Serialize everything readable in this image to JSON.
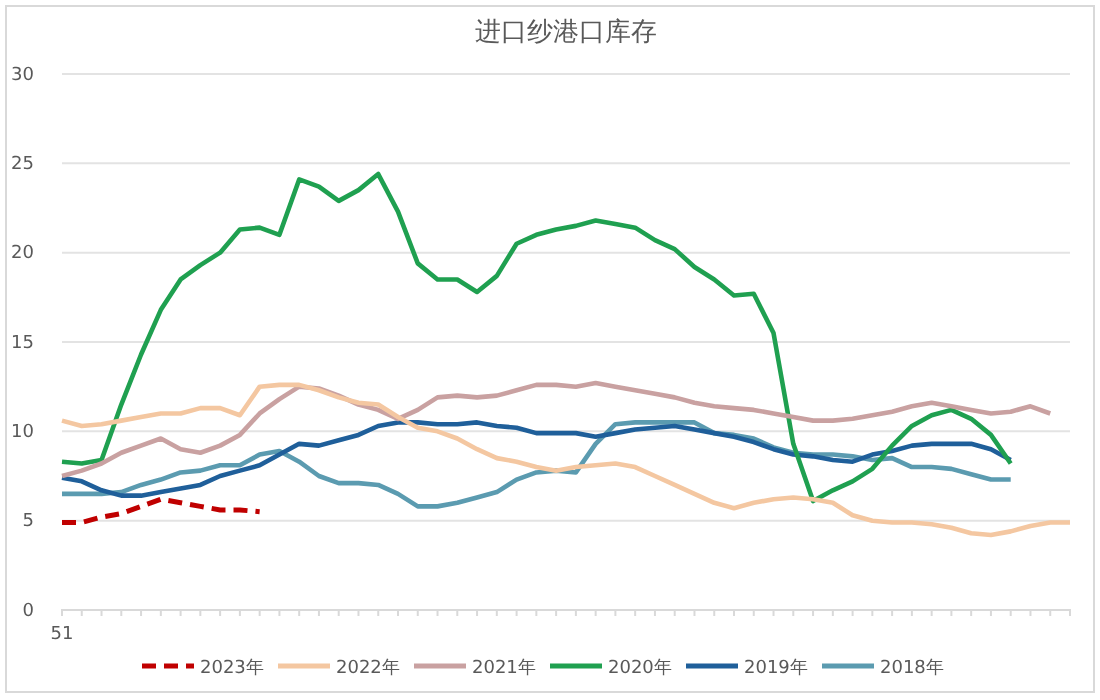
{
  "chart_data": {
    "type": "line",
    "title": "进口纱港口库存",
    "categories": [
      "51",
      null,
      null,
      null,
      null,
      null,
      null,
      null,
      null,
      null,
      null,
      null,
      null,
      null,
      null,
      null,
      null,
      null,
      null,
      null,
      null,
      null,
      null,
      null,
      null,
      null,
      null,
      null,
      null,
      null,
      null,
      null,
      null,
      null,
      null,
      null,
      null,
      null,
      null,
      null,
      null,
      null,
      null,
      null,
      null,
      null,
      null,
      null,
      null,
      null,
      null,
      null
    ],
    "ylim": [
      0,
      30
    ],
    "yticks": [
      0,
      5,
      10,
      15,
      20,
      25,
      30
    ],
    "grid": "y",
    "legend": "bottom",
    "series": [
      {
        "name": "2023年",
        "color": "#c00000",
        "line_style": "dashed",
        "values": [
          4.9,
          4.9,
          5.2,
          5.4,
          5.8,
          6.2,
          6.0,
          5.8,
          5.6,
          5.6,
          5.5,
          null,
          null,
          null,
          null,
          null,
          null,
          null,
          null,
          null,
          null,
          null,
          null,
          null,
          null,
          null,
          null,
          null,
          null,
          null,
          null,
          null,
          null,
          null,
          null,
          null,
          null,
          null,
          null,
          null,
          null,
          null,
          null,
          null,
          null,
          null,
          null,
          null,
          null,
          null,
          null,
          null
        ]
      },
      {
        "name": "2022年",
        "color": "#f4c7a1",
        "values": [
          10.6,
          10.3,
          10.4,
          10.6,
          10.8,
          11.0,
          11.0,
          11.3,
          11.3,
          10.9,
          12.5,
          12.6,
          12.6,
          12.3,
          11.9,
          11.6,
          11.5,
          10.8,
          10.2,
          10.0,
          9.6,
          9.0,
          8.5,
          8.3,
          8.0,
          7.8,
          8.0,
          8.1,
          8.2,
          8.0,
          7.5,
          7.0,
          6.5,
          6.0,
          5.7,
          6.0,
          6.2,
          6.3,
          6.2,
          6.0,
          5.3,
          5.0,
          4.9,
          4.9,
          4.8,
          4.6,
          4.3,
          4.2,
          4.4,
          4.7,
          4.9,
          4.9
        ]
      },
      {
        "name": "2021年",
        "color": "#c9a1a1",
        "values": [
          7.5,
          7.8,
          8.2,
          8.8,
          9.2,
          9.6,
          9.0,
          8.8,
          9.2,
          9.8,
          11.0,
          11.8,
          12.5,
          12.4,
          12.0,
          11.5,
          11.2,
          10.7,
          11.2,
          11.9,
          12.0,
          11.9,
          12.0,
          12.3,
          12.6,
          12.6,
          12.5,
          12.7,
          12.5,
          12.3,
          12.1,
          11.9,
          11.6,
          11.4,
          11.3,
          11.2,
          11.0,
          10.8,
          10.6,
          10.6,
          10.7,
          10.9,
          11.1,
          11.4,
          11.6,
          11.4,
          11.2,
          11.0,
          11.1,
          11.4,
          11.0,
          null
        ]
      },
      {
        "name": "2020年",
        "color": "#1fa050",
        "values": [
          8.3,
          8.2,
          8.4,
          11.5,
          14.3,
          16.8,
          18.5,
          19.3,
          20.0,
          21.3,
          21.4,
          21.0,
          24.1,
          23.7,
          22.9,
          23.5,
          24.4,
          22.3,
          19.4,
          18.5,
          18.5,
          17.8,
          18.7,
          20.5,
          21.0,
          21.3,
          21.5,
          21.8,
          21.6,
          21.4,
          20.7,
          20.2,
          19.2,
          18.5,
          17.6,
          17.7,
          15.5,
          9.3,
          6.1,
          6.7,
          7.2,
          7.9,
          9.2,
          10.3,
          10.9,
          11.2,
          10.7,
          9.8,
          8.2,
          null,
          null,
          null
        ]
      },
      {
        "name": "2019年",
        "color": "#1f5f9a",
        "values": [
          7.4,
          7.2,
          6.7,
          6.4,
          6.4,
          6.6,
          6.8,
          7.0,
          7.5,
          7.8,
          8.1,
          8.7,
          9.3,
          9.2,
          9.5,
          9.8,
          10.3,
          10.5,
          10.5,
          10.4,
          10.4,
          10.5,
          10.3,
          10.2,
          9.9,
          9.9,
          9.9,
          9.7,
          9.9,
          10.1,
          10.2,
          10.3,
          10.1,
          9.9,
          9.7,
          9.4,
          9.0,
          8.7,
          8.6,
          8.4,
          8.3,
          8.7,
          8.9,
          9.2,
          9.3,
          9.3,
          9.3,
          9.0,
          8.4,
          null,
          null,
          null
        ]
      },
      {
        "name": "2018年",
        "color": "#5b9bb0",
        "values": [
          6.5,
          6.5,
          6.5,
          6.6,
          7.0,
          7.3,
          7.7,
          7.8,
          8.1,
          8.1,
          8.7,
          8.9,
          8.3,
          7.5,
          7.1,
          7.1,
          7.0,
          6.5,
          5.8,
          5.8,
          6.0,
          6.3,
          6.6,
          7.3,
          7.7,
          7.8,
          7.7,
          9.3,
          10.4,
          10.5,
          10.5,
          10.5,
          10.5,
          9.9,
          9.8,
          9.6,
          9.1,
          8.8,
          8.7,
          8.7,
          8.6,
          8.4,
          8.5,
          8.0,
          8.0,
          7.9,
          7.6,
          7.3,
          7.3,
          null,
          null,
          null
        ]
      }
    ]
  }
}
